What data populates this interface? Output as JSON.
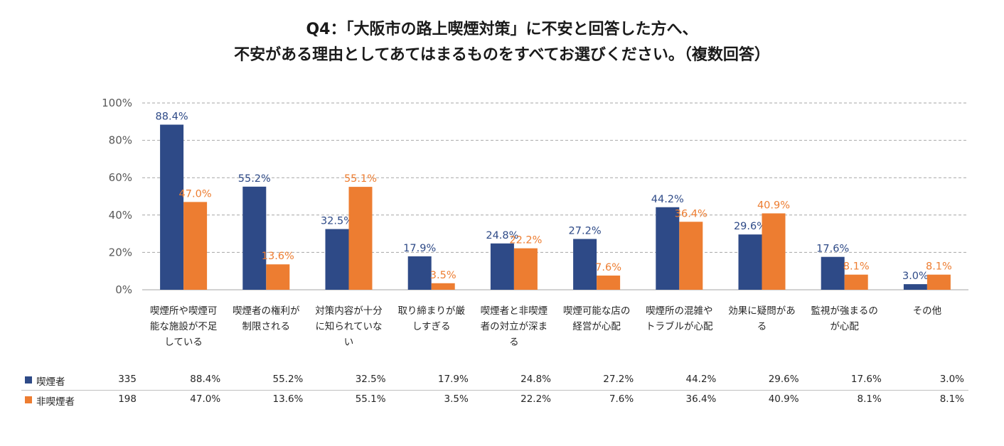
{
  "title": {
    "line1": "Q4：「大阪市の路上喫煙対策」に不安と回答した方へ、",
    "line2": "不安がある理由としてあてはまるものをすべてお選びください。（複数回答）"
  },
  "colors": {
    "smoker": "#2E4A87",
    "nonsmoker": "#ED7D31",
    "axis_text": "#595959",
    "grid": "#a6a6a6"
  },
  "chart_data": {
    "type": "bar",
    "title": "Q4：「大阪市の路上喫煙対策」に不安と回答した方へ、不安がある理由としてあてはまるものをすべてお選びください。（複数回答）",
    "categories": [
      [
        "喫煙所や喫煙可",
        "能な施設が不足",
        "している"
      ],
      [
        "喫煙者の権利が",
        "制限される"
      ],
      [
        "対策内容が十分",
        "に知られていな",
        "い"
      ],
      [
        "取り締まりが厳",
        "しすぎる"
      ],
      [
        "喫煙者と非喫煙",
        "者の対立が深ま",
        "る"
      ],
      [
        "喫煙可能な店の",
        "経営が心配"
      ],
      [
        "喫煙所の混雑や",
        "トラブルが心配"
      ],
      [
        "効果に疑問があ",
        "る"
      ],
      [
        "監視が強まるの",
        "が心配"
      ],
      [
        "その他"
      ]
    ],
    "yticks": [
      "0%",
      "20%",
      "40%",
      "60%",
      "80%",
      "100%"
    ],
    "ylim": [
      0,
      100
    ],
    "grid": true,
    "series": [
      {
        "name": "喫煙者",
        "n": 335,
        "values": [
          88.4,
          55.2,
          32.5,
          17.9,
          24.8,
          27.2,
          44.2,
          29.6,
          17.6,
          3.0
        ],
        "labels": [
          "88.4%",
          "55.2%",
          "32.5%",
          "17.9%",
          "24.8%",
          "27.2%",
          "44.2%",
          "29.6%",
          "17.6%",
          "3.0%"
        ]
      },
      {
        "name": "非喫煙者",
        "n": 198,
        "values": [
          47.0,
          13.6,
          55.1,
          3.5,
          22.2,
          7.6,
          36.4,
          40.9,
          8.1,
          8.1
        ],
        "labels": [
          "47.0%",
          "13.6%",
          "55.1%",
          "3.5%",
          "22.2%",
          "7.6%",
          "36.4%",
          "40.9%",
          "8.1%",
          "8.1%"
        ]
      }
    ]
  },
  "table": {
    "rows": [
      {
        "label": "喫煙者",
        "n": "335",
        "values": [
          "88.4%",
          "55.2%",
          "32.5%",
          "17.9%",
          "24.8%",
          "27.2%",
          "44.2%",
          "29.6%",
          "17.6%",
          "3.0%"
        ]
      },
      {
        "label": "非喫煙者",
        "n": "198",
        "values": [
          "47.0%",
          "13.6%",
          "55.1%",
          "3.5%",
          "22.2%",
          "7.6%",
          "36.4%",
          "40.9%",
          "8.1%",
          "8.1%"
        ]
      }
    ]
  }
}
